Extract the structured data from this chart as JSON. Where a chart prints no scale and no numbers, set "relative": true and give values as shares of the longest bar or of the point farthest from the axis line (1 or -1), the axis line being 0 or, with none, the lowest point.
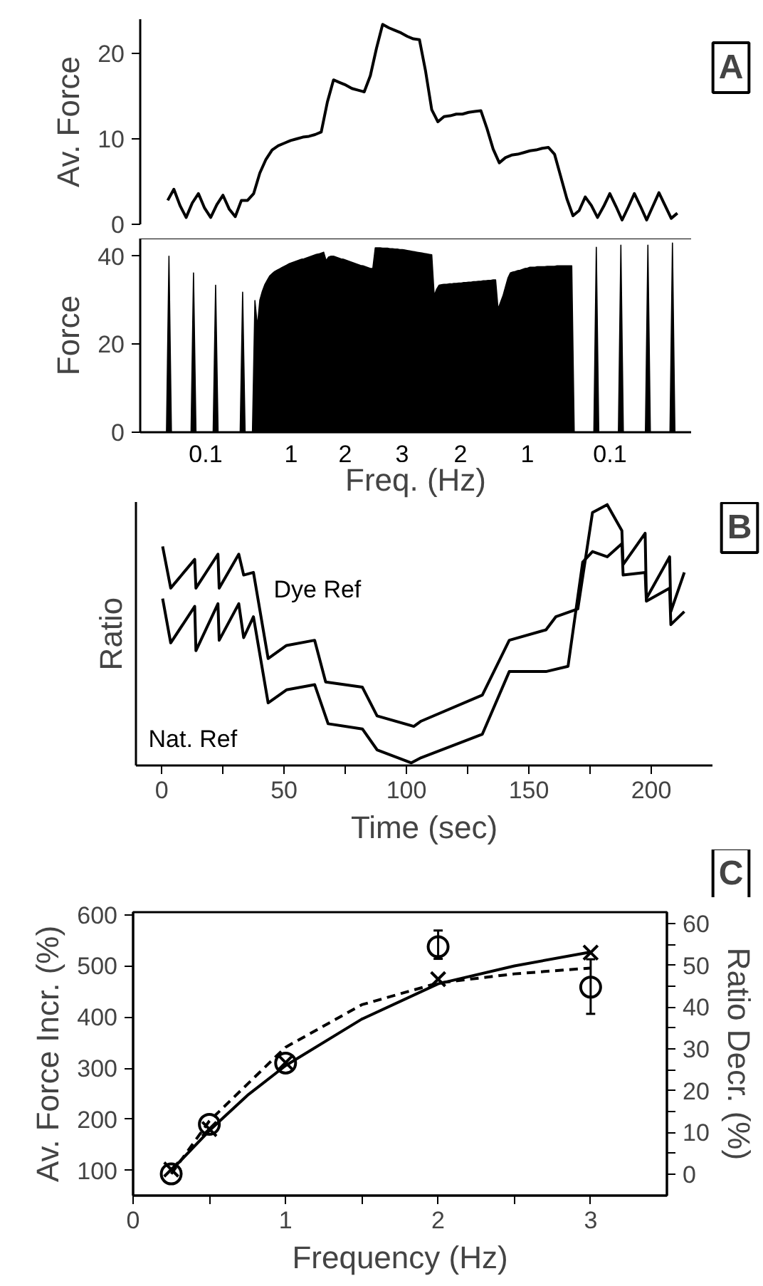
{
  "chart_data": [
    {
      "type": "line",
      "ylabel": "Av. Force",
      "annotations": [
        "A"
      ],
      "tick_labels": "y",
      "ylim": [
        0,
        24
      ],
      "yticks": [
        0,
        10,
        20
      ],
      "categories": [
        null,
        null,
        null,
        null,
        null,
        null,
        null,
        null,
        null,
        null,
        null,
        null,
        null,
        null,
        null,
        null,
        null,
        null,
        null,
        null,
        null,
        null,
        null,
        null,
        null,
        null,
        null,
        null,
        null,
        null,
        null,
        null,
        null,
        null,
        null,
        null,
        null,
        null,
        null,
        null,
        null,
        null,
        null,
        null,
        null,
        null,
        null,
        null,
        null,
        null,
        null,
        null,
        null,
        null,
        null,
        null,
        null,
        null,
        null,
        null,
        null,
        null,
        null,
        null,
        null,
        null,
        null,
        null,
        null,
        null,
        null,
        null,
        null,
        null,
        null,
        null,
        null,
        null,
        null,
        null,
        null,
        null,
        null,
        null
      ],
      "series": [
        {
          "color": "#000000",
          "values": [
            2.8,
            4.1,
            2.2,
            0.8,
            2.5,
            3.6,
            1.9,
            0.8,
            2.3,
            3.4,
            1.8,
            0.9,
            2.8,
            2.8,
            3.6,
            6.0,
            7.6,
            8.7,
            9.2,
            9.5,
            9.8,
            10.0,
            10.2,
            10.3,
            10.5,
            10.8,
            14.3,
            16.9,
            16.6,
            16.3,
            15.9,
            15.7,
            15.5,
            17.4,
            20.6,
            23.4,
            23.0,
            22.7,
            22.4,
            22.0,
            21.7,
            21.6,
            17.9,
            13.4,
            12.0,
            12.6,
            12.7,
            12.9,
            12.9,
            13.1,
            13.2,
            13.3,
            11.2,
            8.8,
            7.2,
            7.8,
            8.1,
            8.2,
            8.4,
            8.6,
            8.7,
            8.9,
            9.0,
            8.2,
            5.6,
            3.0,
            1.0,
            1.6,
            3.2,
            2.2,
            0.8,
            2.1,
            3.6,
            2.1,
            0.5,
            2.0,
            3.6,
            2.1,
            0.5,
            2.1,
            3.7,
            2.2,
            0.7,
            1.3
          ]
        }
      ]
    },
    {
      "type": "area",
      "ylabel": "Force",
      "xlabel": "Freq. (Hz)",
      "tick_labels": "y",
      "ylim": [
        0,
        44
      ],
      "annotations": [
        "0.1",
        "1",
        "2",
        "3",
        "2",
        "1",
        "0.1"
      ],
      "yticks": [
        0,
        20,
        40
      ],
      "categories": [
        null,
        null,
        null,
        null,
        null,
        null,
        null,
        null,
        null,
        null,
        null,
        null,
        null,
        null,
        null,
        null,
        null,
        null,
        null,
        null,
        null,
        null,
        null,
        null,
        null,
        null,
        null,
        null,
        null,
        null,
        null,
        null,
        null,
        null,
        null,
        null,
        null,
        null,
        null,
        null,
        null,
        null,
        null,
        null,
        null,
        null,
        null,
        null,
        null,
        null,
        null,
        null,
        null,
        null,
        null,
        null,
        null,
        null,
        null,
        null,
        null,
        null,
        null,
        null,
        null,
        null,
        null,
        null,
        null,
        null,
        null,
        null,
        null,
        null,
        null,
        null,
        null,
        null,
        null,
        null,
        null,
        null,
        null,
        null,
        null,
        null,
        null,
        null,
        null,
        null,
        null,
        null,
        null,
        null,
        null,
        null,
        null,
        null,
        null,
        null,
        null,
        null,
        null,
        null,
        null,
        null,
        null,
        null,
        null,
        null,
        null,
        null,
        null,
        null,
        null,
        null,
        null,
        null,
        null,
        null,
        null,
        null,
        null,
        null,
        null,
        null,
        null,
        null,
        null,
        null,
        null,
        null,
        null,
        null,
        null,
        null,
        null,
        null,
        null,
        null,
        null,
        null,
        null,
        null,
        null,
        null,
        null,
        null,
        null,
        null,
        null,
        null,
        null,
        null,
        null,
        null,
        null,
        null,
        null,
        null,
        null,
        null,
        null,
        null,
        null,
        null,
        null,
        null,
        null,
        null,
        null,
        null,
        null,
        null,
        null,
        null,
        null,
        null,
        null,
        null,
        null,
        null,
        null,
        null,
        null,
        null,
        null,
        null,
        null,
        null,
        null,
        null,
        null,
        null,
        null,
        null,
        null,
        null,
        null,
        null,
        null,
        null,
        null,
        null,
        null,
        null,
        null,
        null,
        null,
        null,
        null,
        null,
        null
      ],
      "series": [
        {
          "color": "#000000",
          "values": [
            0,
            0,
            0,
            40,
            0,
            0,
            0,
            0,
            0,
            0,
            0,
            0,
            0,
            36.2,
            0,
            0,
            0,
            0,
            0,
            0,
            0,
            0,
            33.4,
            0,
            0,
            0,
            0,
            0,
            0,
            0,
            0,
            0,
            0,
            31.8,
            0,
            0,
            0,
            0,
            29.9,
            24,
            30,
            32,
            33.5,
            34.5,
            35.5,
            36,
            36.5,
            36.8,
            37.1,
            37.4,
            37.7,
            38.0,
            38.3,
            38.5,
            38.7,
            38.9,
            39.1,
            39.3,
            39.4,
            39.6,
            39.8,
            40.0,
            40.2,
            40.4,
            40.5,
            40.7,
            40.9,
            39,
            39.8,
            40,
            40,
            39.8,
            39.6,
            39.4,
            39.3,
            39.1,
            38.9,
            38.7,
            38.5,
            38.3,
            38.1,
            37.9,
            37.8,
            37.6,
            37.4,
            37.2,
            37.2,
            41.9,
            41.9,
            41.9,
            41.8,
            41.8,
            41.8,
            41.7,
            41.7,
            41.6,
            41.6,
            41.5,
            41.5,
            41.4,
            41.3,
            41.2,
            41.1,
            41.0,
            40.9,
            40.8,
            40.7,
            40.6,
            40.5,
            40.4,
            40.3,
            31,
            32.5,
            33.4,
            33.5,
            33.6,
            33.6,
            33.7,
            33.7,
            33.8,
            33.8,
            33.9,
            33.9,
            34.0,
            34.0,
            34.1,
            34.1,
            34.2,
            34.2,
            34.3,
            34.3,
            34.4,
            34.4,
            34.5,
            34.5,
            34.6,
            34.6,
            28,
            29.5,
            31,
            33,
            35,
            36.2,
            36.4,
            36.5,
            36.7,
            36.8,
            37.0,
            37.2,
            37.3,
            37.5,
            37.5,
            37.5,
            37.6,
            37.6,
            37.6,
            37.6,
            37.7,
            37.7,
            37.7,
            37.7,
            37.8,
            37.8,
            37.8,
            37.8,
            37.8,
            37.8,
            37.8,
            0,
            0,
            0,
            0,
            0,
            0,
            0,
            0,
            0,
            42,
            0,
            0,
            0,
            0,
            0,
            0,
            0,
            0,
            0,
            42.5,
            0,
            0,
            0,
            0,
            0,
            0,
            0,
            0,
            0,
            0,
            42.5,
            0,
            0,
            0,
            0,
            0,
            0,
            0,
            0,
            0,
            43,
            0,
            0,
            0,
            0
          ]
        }
      ]
    },
    {
      "type": "line",
      "relative": true,
      "ylabel": "Ratio",
      "xlabel": "Time (sec)",
      "annotations": [
        "B"
      ],
      "xlim": [
        -10.5,
        225
      ],
      "xticks": [
        0,
        {
          "value": 25,
          "label": null
        },
        50,
        {
          "value": 75,
          "label": null
        },
        100,
        {
          "value": 125,
          "label": null
        },
        150,
        {
          "value": 175,
          "label": null
        },
        200
      ],
      "series": [
        {
          "name": "Dye Ref",
          "color": "#000000",
          "x": [
            0.4,
            3.7,
            13.5,
            14,
            23,
            23.5,
            31.5,
            33.5,
            37.5,
            43.5,
            51,
            62.5,
            67,
            82,
            88,
            103,
            106,
            131,
            142,
            157,
            161,
            170,
            176,
            182,
            188,
            188.5,
            197.5,
            198,
            207.5,
            208,
            213.5
          ],
          "values": [
            0.84,
            0.68,
            0.79,
            0.68,
            0.81,
            0.68,
            0.81,
            0.73,
            0.74,
            0.41,
            0.46,
            0.48,
            0.32,
            0.3,
            0.19,
            0.15,
            0.17,
            0.27,
            0.48,
            0.52,
            0.57,
            0.6,
            0.97,
            1.0,
            0.9,
            0.77,
            0.89,
            0.64,
            0.8,
            0.59,
            0.74
          ]
        },
        {
          "name": "Nat. Ref",
          "color": "#000000",
          "x": [
            0.4,
            3.7,
            13.5,
            14,
            23,
            23.5,
            31.5,
            33.5,
            37.5,
            43.5,
            51,
            62.5,
            68,
            82,
            88,
            102,
            106,
            131,
            142,
            157,
            166,
            172,
            176,
            182,
            188,
            188.5,
            197.5,
            198,
            207.5,
            208,
            213.5
          ],
          "values": [
            0.64,
            0.47,
            0.61,
            0.44,
            0.62,
            0.48,
            0.62,
            0.49,
            0.57,
            0.24,
            0.29,
            0.31,
            0.16,
            0.14,
            0.06,
            0.01,
            0.03,
            0.12,
            0.36,
            0.36,
            0.38,
            0.78,
            0.82,
            0.8,
            0.85,
            0.73,
            0.74,
            0.63,
            0.68,
            0.54,
            0.59
          ]
        }
      ]
    },
    {
      "type": "scatter",
      "xlabel": "Frequency (Hz)",
      "ylabel": "Av. Force Incr. (%)",
      "y2label": "Ratio Decr. (%)",
      "annotations": [
        "C"
      ],
      "xlim": [
        0,
        3.5
      ],
      "xticks": [
        0,
        {
          "value": 0.5,
          "label": null
        },
        1,
        {
          "value": 1.5,
          "label": null
        },
        2,
        {
          "value": 2.5,
          "label": null
        },
        3
      ],
      "ylim": [
        51,
        605
      ],
      "yticks": [
        100,
        200,
        300,
        400,
        500,
        600
      ],
      "y2lim": [
        -5.2,
        62.8
      ],
      "y2ticks": [
        0,
        {
          "value": 5,
          "label": null
        },
        10,
        {
          "value": 15,
          "label": null
        },
        20,
        {
          "value": 25,
          "label": null
        },
        30,
        {
          "value": 35,
          "label": null
        },
        40,
        {
          "value": 45,
          "label": null
        },
        50,
        {
          "value": 55,
          "label": null
        },
        60
      ],
      "series": [
        {
          "type": "scatter",
          "marker": "cross",
          "color": "#000000",
          "x": [
            0.25,
            0.5,
            1,
            2,
            3
          ],
          "values": [
            102,
            181,
            311,
            474,
            526
          ]
        },
        {
          "type": "scatter",
          "marker": "circle",
          "axis": "y2",
          "color": "#000000",
          "x": [
            0.25,
            0.5,
            1,
            2,
            3
          ],
          "values": [
            0,
            11.9,
            26.6,
            54.5,
            44.8
          ],
          "errors": [
            null,
            null,
            null,
            [
              51.6,
              58.4
            ],
            [
              38.4,
              51.5
            ]
          ]
        },
        {
          "type": "line",
          "line_style": "solid",
          "color": "#000000",
          "x": [
            0.25,
            0.5,
            0.75,
            1,
            1.5,
            2,
            2.5,
            3
          ],
          "values": [
            100,
            178,
            247,
            305,
            396,
            465,
            500,
            527
          ]
        },
        {
          "type": "line",
          "line_style": "dashed",
          "axis": "y2",
          "color": "#000000",
          "x": [
            0.25,
            0.5,
            1,
            1.5,
            2,
            2.5,
            3
          ],
          "values": [
            0,
            12.7,
            30.4,
            40.6,
            45.8,
            48.0,
            49.4
          ]
        }
      ]
    }
  ]
}
